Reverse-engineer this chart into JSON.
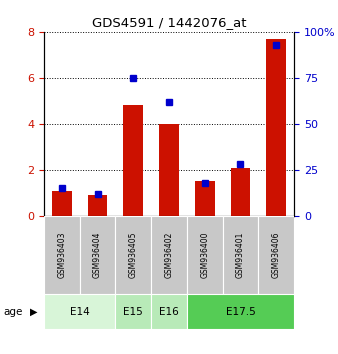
{
  "title": "GDS4591 / 1442076_at",
  "samples": [
    "GSM936403",
    "GSM936404",
    "GSM936405",
    "GSM936402",
    "GSM936400",
    "GSM936401",
    "GSM936406"
  ],
  "transformed_counts": [
    1.1,
    0.9,
    4.8,
    4.0,
    1.5,
    2.1,
    7.7
  ],
  "percentile_ranks": [
    15,
    12,
    75,
    62,
    18,
    28,
    93
  ],
  "ylim_left": [
    0,
    8
  ],
  "ylim_right": [
    0,
    100
  ],
  "yticks_left": [
    0,
    2,
    4,
    6,
    8
  ],
  "yticks_right": [
    0,
    25,
    50,
    75,
    100
  ],
  "ytick_right_labels": [
    "0",
    "25",
    "50",
    "75",
    "100%"
  ],
  "age_groups": [
    {
      "label": "E14",
      "indices": [
        0,
        1
      ],
      "color": "#d8f5d8"
    },
    {
      "label": "E15",
      "indices": [
        2
      ],
      "color": "#b8eab8"
    },
    {
      "label": "E16",
      "indices": [
        3
      ],
      "color": "#b8eab8"
    },
    {
      "label": "E17.5",
      "indices": [
        4,
        5,
        6
      ],
      "color": "#55cc55"
    }
  ],
  "bar_color": "#cc1100",
  "marker_color": "#0000cc",
  "sample_bg_color": "#c8c8c8",
  "bar_width": 0.55
}
